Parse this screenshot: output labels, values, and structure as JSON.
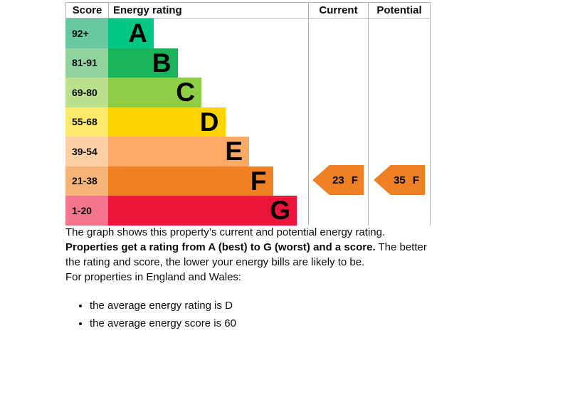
{
  "chart_data": {
    "type": "bar",
    "header": {
      "score": "Score",
      "rating": "Energy rating",
      "current": "Current",
      "potential": "Potential"
    },
    "bands": [
      {
        "letter": "A",
        "score_range": "92+",
        "bar_color": "#00c781",
        "cell_color": "#68c9a0"
      },
      {
        "letter": "B",
        "score_range": "81-91",
        "bar_color": "#19b459",
        "cell_color": "#90d39f"
      },
      {
        "letter": "C",
        "score_range": "69-80",
        "bar_color": "#8dce46",
        "cell_color": "#bbe08d"
      },
      {
        "letter": "D",
        "score_range": "55-68",
        "bar_color": "#ffd500",
        "cell_color": "#ffe96d"
      },
      {
        "letter": "E",
        "score_range": "39-54",
        "bar_color": "#fcaa65",
        "cell_color": "#fdd0a4"
      },
      {
        "letter": "F",
        "score_range": "21-38",
        "bar_color": "#ef8023",
        "cell_color": "#f5b377"
      },
      {
        "letter": "G",
        "score_range": "1-20",
        "bar_color": "#e9153b",
        "cell_color": "#f2748d"
      }
    ],
    "current": {
      "score": "23",
      "band": "F",
      "arrow_color": "#ef8023"
    },
    "potential": {
      "score": "35",
      "band": "F",
      "arrow_color": "#ef8023"
    }
  },
  "text": {
    "intro": "The graph shows this property’s current and potential energy rating.",
    "rating_rule_bold": "Properties get a rating from A (best) to G (worst) and a score.",
    "rating_rule_rest": " The better the rating and score, the lower your energy bills are likely to be.",
    "region_line": "For properties in England and Wales:",
    "bullets": [
      "the average energy rating is D",
      "the average energy score is 60"
    ]
  }
}
